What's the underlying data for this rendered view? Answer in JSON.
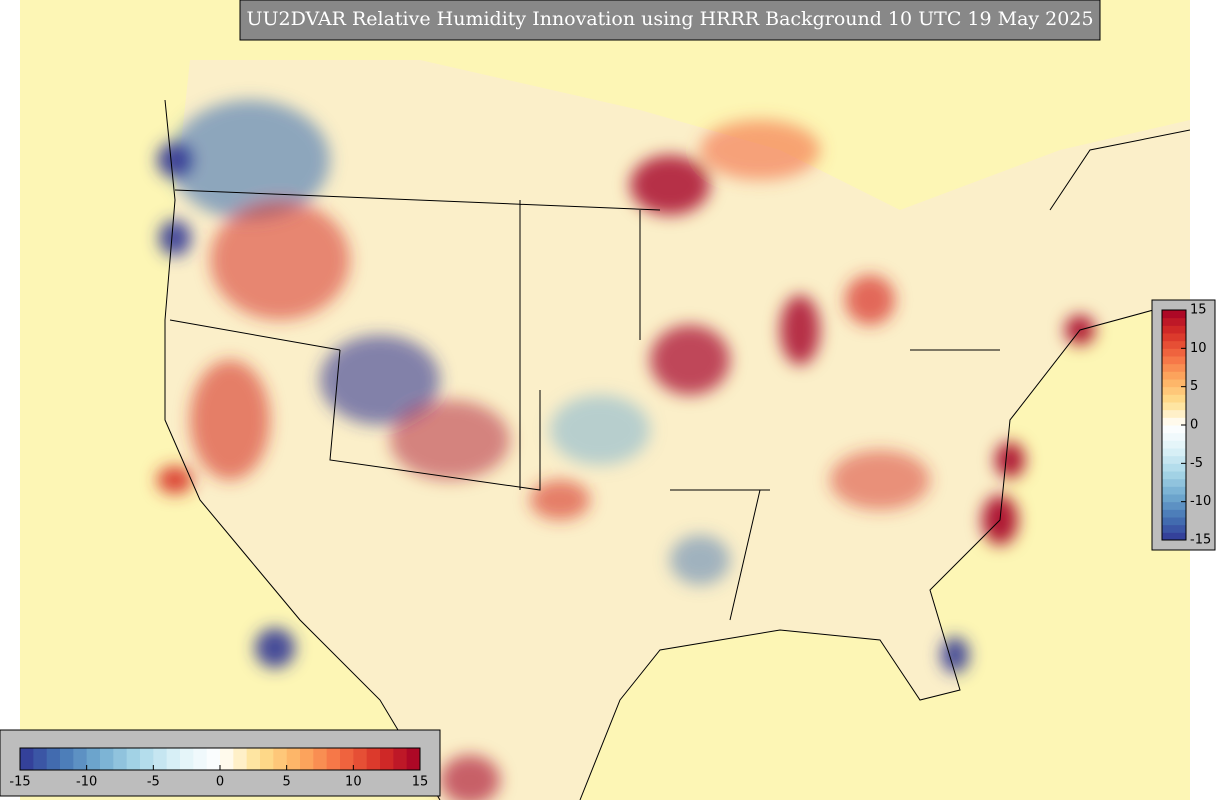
{
  "title": "UU2DVAR Relative Humidity Innovation using HRRR Background 10 UTC 19 May 2025",
  "colorbars": [
    {
      "orientation": "vertical",
      "range": [
        -15,
        15
      ],
      "ticks": [
        15,
        10,
        5,
        0,
        -5,
        -10,
        -15
      ]
    },
    {
      "orientation": "horizontal",
      "range": [
        -15,
        15
      ],
      "ticks": [
        -15,
        -10,
        -5,
        0,
        5,
        10,
        15
      ]
    }
  ],
  "colormap": [
    "#313695",
    "#4575b4",
    "#74add1",
    "#abd9e9",
    "#e0f3f8",
    "#ffffff",
    "#fee090",
    "#fdae61",
    "#f46d43",
    "#d73027",
    "#a50026"
  ]
}
